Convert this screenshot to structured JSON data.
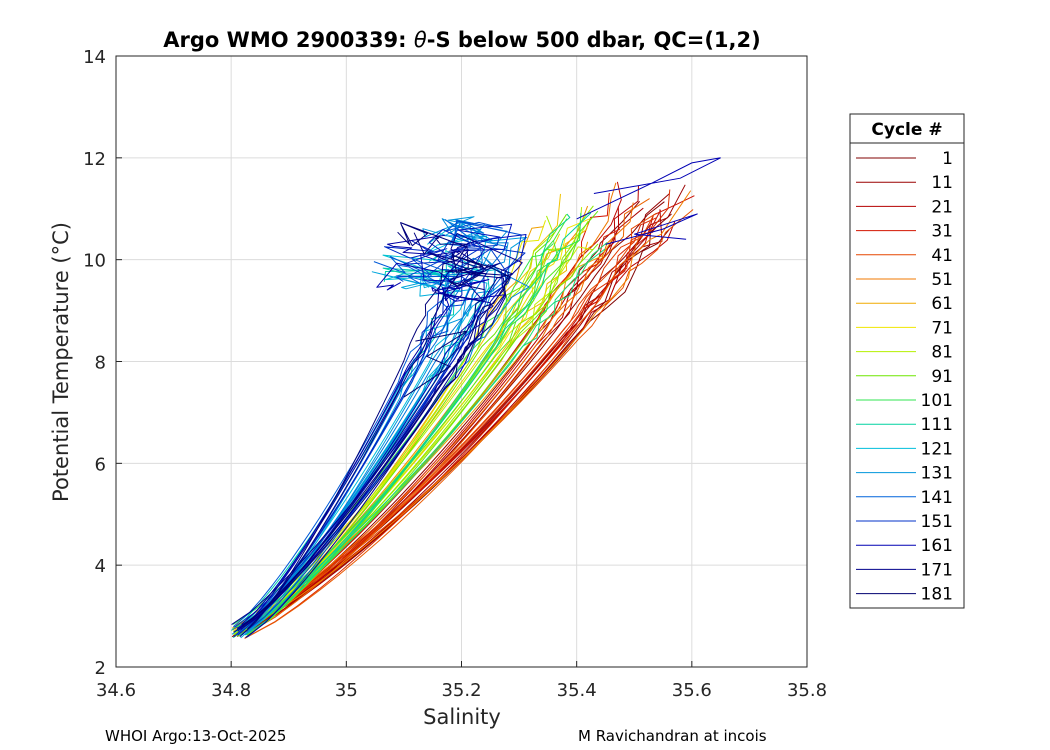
{
  "chart_data": {
    "type": "line",
    "title_prefix": "Argo WMO 2900339: ",
    "title_symbol": "θ",
    "title_suffix": "-S below 500 dbar,  QC=(1,2)",
    "xlabel": "Salinity",
    "ylabel": "Potential Temperature (°C)",
    "xlim": [
      34.6,
      35.8
    ],
    "ylim": [
      2,
      14
    ],
    "xticks": [
      "34.6",
      "34.8",
      "35",
      "35.2",
      "35.4",
      "35.6",
      "35.8"
    ],
    "yticks": [
      "2",
      "4",
      "6",
      "8",
      "10",
      "12",
      "14"
    ],
    "grid": true,
    "legend": {
      "title": "Cycle #",
      "position": "right",
      "entries": [
        {
          "label": "1",
          "color": "#800000"
        },
        {
          "label": "11",
          "color": "#9a0000"
        },
        {
          "label": "21",
          "color": "#b40000"
        },
        {
          "label": "31",
          "color": "#d21400"
        },
        {
          "label": "41",
          "color": "#e64600"
        },
        {
          "label": "51",
          "color": "#f07800"
        },
        {
          "label": "61",
          "color": "#f0aa00"
        },
        {
          "label": "71",
          "color": "#f0e600"
        },
        {
          "label": "81",
          "color": "#b4f000"
        },
        {
          "label": "91",
          "color": "#6ee600"
        },
        {
          "label": "101",
          "color": "#32e650"
        },
        {
          "label": "111",
          "color": "#00d2a0"
        },
        {
          "label": "121",
          "color": "#00bedc"
        },
        {
          "label": "131",
          "color": "#0096dc"
        },
        {
          "label": "141",
          "color": "#0064dc"
        },
        {
          "label": "151",
          "color": "#0032c8"
        },
        {
          "label": "161",
          "color": "#0000b4"
        },
        {
          "label": "171",
          "color": "#00008c"
        },
        {
          "label": "181",
          "color": "#000070"
        }
      ]
    },
    "series_shape": {
      "deep_point": [
        34.8,
        2.6
      ],
      "warm_group_1": {
        "s_top": 35.55,
        "t_top": 11.3,
        "cycles": "1-51"
      },
      "warm_group_2": {
        "s_top": 35.42,
        "t_top": 10.8,
        "cycles": "61-111"
      },
      "warm_group_3": {
        "s_top": 35.25,
        "t_top": 9.8,
        "cycles": "121-181"
      },
      "extremes": {
        "max_salinity": 35.65,
        "max_temperature": 12.0
      }
    }
  },
  "footer": {
    "left": "WHOI Argo:13-Oct-2025",
    "right": "M Ravichandran at incois"
  }
}
